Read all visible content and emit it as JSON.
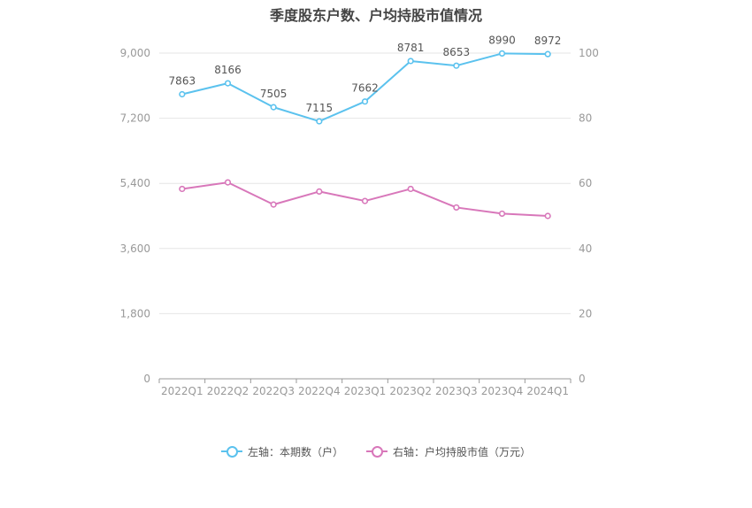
{
  "chart_data": {
    "type": "line",
    "title": "季度股东户数、户均持股市值情况",
    "categories": [
      "2022Q1",
      "2022Q2",
      "2022Q3",
      "2022Q4",
      "2023Q1",
      "2023Q2",
      "2023Q3",
      "2023Q4",
      "2024Q1"
    ],
    "series": [
      {
        "name": "左轴：本期数（户）",
        "axis": "left",
        "color": "#5BC2EE",
        "values": [
          7863,
          8166,
          7505,
          7115,
          7662,
          8781,
          8653,
          8990,
          8972
        ],
        "show_labels": true
      },
      {
        "name": "右轴：户均持股市值（万元）",
        "axis": "right",
        "color": "#D877BA",
        "values": [
          58.3,
          60.3,
          53.5,
          57.5,
          54.6,
          58.3,
          52.6,
          50.7,
          50.0
        ],
        "show_labels": false
      }
    ],
    "y_left": {
      "min": 0,
      "max": 9000,
      "ticks": [
        0,
        1800,
        3600,
        5400,
        7200,
        9000
      ],
      "tick_labels": [
        "0",
        "1,800",
        "3,600",
        "5,400",
        "7,200",
        "9,000"
      ]
    },
    "y_right": {
      "min": 0,
      "max": 100,
      "ticks": [
        0,
        20,
        40,
        60,
        80,
        100
      ],
      "tick_labels": [
        "0",
        "20",
        "40",
        "60",
        "80",
        "100"
      ]
    },
    "grid": true,
    "legend_position": "bottom-center"
  }
}
